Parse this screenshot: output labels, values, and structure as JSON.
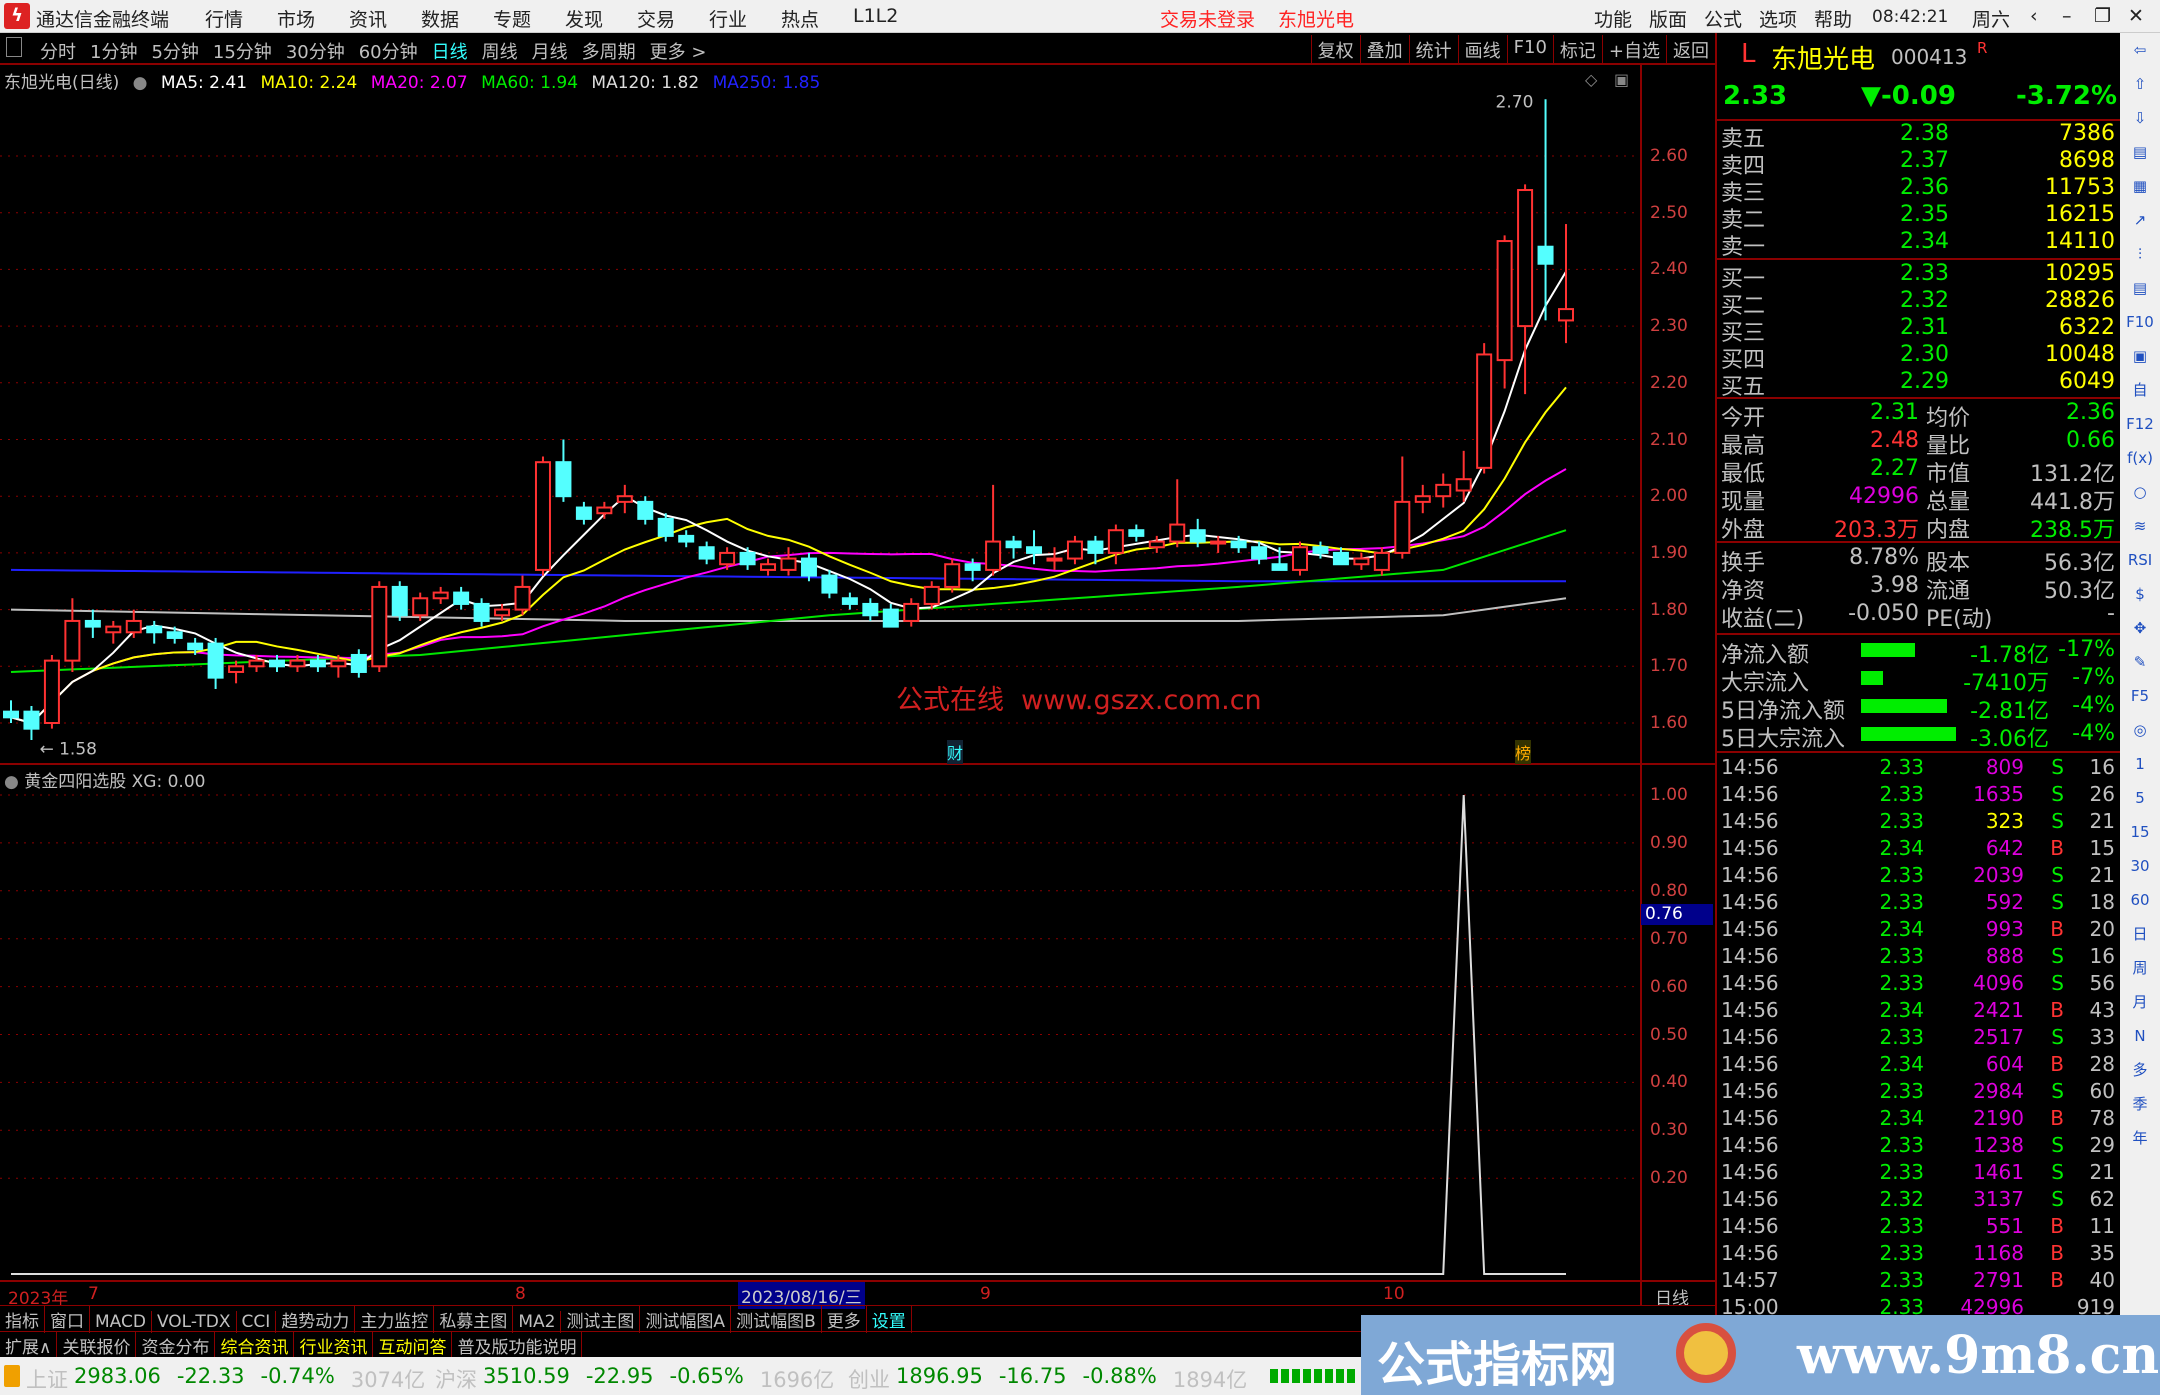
{
  "titlebar": {
    "app": "通达信金融终端",
    "menus": [
      "行情",
      "市场",
      "资讯",
      "数据",
      "专题",
      "发现",
      "交易",
      "行业",
      "热点",
      "L1L2"
    ],
    "login": "交易未登录",
    "stock": "东旭光电",
    "right_menus": [
      "功能",
      "版面",
      "公式",
      "选项",
      "帮助"
    ],
    "time": "08:42:21",
    "weekday": "周六"
  },
  "periods": [
    "分时",
    "1分钟",
    "5分钟",
    "15分钟",
    "30分钟",
    "60分钟",
    "日线",
    "周线",
    "月线",
    "多周期",
    "更多 >"
  ],
  "selected_period": "日线",
  "chart_toolbar": [
    "复权",
    "叠加",
    "统计",
    "画线",
    "F10",
    "标记",
    "+自选",
    "返回"
  ],
  "ma": {
    "title": "东旭光电(日线)",
    "ma5": "MA5: 2.41",
    "ma10": "MA10: 2.24",
    "ma20": "MA20: 2.07",
    "ma60": "MA60: 1.94",
    "ma120": "MA120: 1.82",
    "ma250": "MA250: 1.85"
  },
  "colors": {
    "up": "#ff3232",
    "down": "#54ffff",
    "ma5": "#ffffff",
    "ma10": "#ffff00",
    "ma20": "#ff00ff",
    "ma60": "#00e600",
    "ma120": "#c0c0c0",
    "ma250": "#2020ff",
    "grid": "#8b0000"
  },
  "price_axis": [
    "2.60",
    "2.50",
    "2.40",
    "2.30",
    "2.20",
    "2.10",
    "2.00",
    "1.90",
    "1.80",
    "1.70",
    "1.60"
  ],
  "annotations": {
    "high": "2.70",
    "low": "1.58",
    "watermark": "公式在线  www.gszx.com.cn",
    "cai": "财",
    "bang": "榜"
  },
  "chart_data": {
    "type": "candlestick",
    "ylim": [
      1.55,
      2.72
    ],
    "candles": [
      [
        1.62,
        1.64,
        1.6,
        1.61
      ],
      [
        1.62,
        1.63,
        1.57,
        1.59
      ],
      [
        1.6,
        1.72,
        1.59,
        1.71
      ],
      [
        1.71,
        1.82,
        1.69,
        1.78
      ],
      [
        1.78,
        1.8,
        1.75,
        1.77
      ],
      [
        1.76,
        1.78,
        1.74,
        1.77
      ],
      [
        1.76,
        1.8,
        1.75,
        1.78
      ],
      [
        1.77,
        1.78,
        1.74,
        1.76
      ],
      [
        1.76,
        1.77,
        1.74,
        1.75
      ],
      [
        1.74,
        1.75,
        1.72,
        1.73
      ],
      [
        1.74,
        1.75,
        1.66,
        1.68
      ],
      [
        1.69,
        1.71,
        1.67,
        1.7
      ],
      [
        1.7,
        1.72,
        1.69,
        1.71
      ],
      [
        1.71,
        1.72,
        1.69,
        1.7
      ],
      [
        1.7,
        1.72,
        1.69,
        1.71
      ],
      [
        1.71,
        1.72,
        1.69,
        1.7
      ],
      [
        1.7,
        1.72,
        1.68,
        1.71
      ],
      [
        1.72,
        1.73,
        1.68,
        1.69
      ],
      [
        1.7,
        1.85,
        1.69,
        1.84
      ],
      [
        1.84,
        1.85,
        1.78,
        1.79
      ],
      [
        1.79,
        1.83,
        1.78,
        1.82
      ],
      [
        1.82,
        1.84,
        1.81,
        1.83
      ],
      [
        1.83,
        1.84,
        1.8,
        1.81
      ],
      [
        1.81,
        1.82,
        1.77,
        1.78
      ],
      [
        1.79,
        1.81,
        1.78,
        1.8
      ],
      [
        1.8,
        1.86,
        1.79,
        1.84
      ],
      [
        1.87,
        2.07,
        1.86,
        2.06
      ],
      [
        2.06,
        2.1,
        1.99,
        2.0
      ],
      [
        1.98,
        1.99,
        1.95,
        1.96
      ],
      [
        1.97,
        1.99,
        1.96,
        1.98
      ],
      [
        1.99,
        2.02,
        1.97,
        2.0
      ],
      [
        1.99,
        2.0,
        1.95,
        1.96
      ],
      [
        1.96,
        1.97,
        1.92,
        1.93
      ],
      [
        1.93,
        1.94,
        1.91,
        1.92
      ],
      [
        1.91,
        1.92,
        1.88,
        1.89
      ],
      [
        1.88,
        1.91,
        1.87,
        1.9
      ],
      [
        1.9,
        1.91,
        1.87,
        1.88
      ],
      [
        1.87,
        1.89,
        1.86,
        1.88
      ],
      [
        1.87,
        1.91,
        1.86,
        1.89
      ],
      [
        1.89,
        1.9,
        1.85,
        1.86
      ],
      [
        1.86,
        1.87,
        1.82,
        1.83
      ],
      [
        1.82,
        1.83,
        1.8,
        1.81
      ],
      [
        1.81,
        1.82,
        1.78,
        1.79
      ],
      [
        1.8,
        1.81,
        1.77,
        1.77
      ],
      [
        1.78,
        1.82,
        1.77,
        1.81
      ],
      [
        1.81,
        1.85,
        1.8,
        1.84
      ],
      [
        1.84,
        1.89,
        1.83,
        1.88
      ],
      [
        1.88,
        1.89,
        1.85,
        1.87
      ],
      [
        1.87,
        2.02,
        1.86,
        1.92
      ],
      [
        1.92,
        1.93,
        1.89,
        1.91
      ],
      [
        1.91,
        1.94,
        1.88,
        1.9
      ],
      [
        1.89,
        1.91,
        1.87,
        1.89
      ],
      [
        1.89,
        1.93,
        1.88,
        1.92
      ],
      [
        1.92,
        1.93,
        1.88,
        1.9
      ],
      [
        1.9,
        1.95,
        1.88,
        1.94
      ],
      [
        1.94,
        1.95,
        1.92,
        1.93
      ],
      [
        1.91,
        1.93,
        1.9,
        1.92
      ],
      [
        1.92,
        2.03,
        1.91,
        1.95
      ],
      [
        1.94,
        1.96,
        1.91,
        1.92
      ],
      [
        1.92,
        1.93,
        1.9,
        1.92
      ],
      [
        1.92,
        1.93,
        1.9,
        1.91
      ],
      [
        1.91,
        1.92,
        1.88,
        1.89
      ],
      [
        1.88,
        1.91,
        1.87,
        1.87
      ],
      [
        1.87,
        1.92,
        1.86,
        1.91
      ],
      [
        1.91,
        1.92,
        1.89,
        1.9
      ],
      [
        1.9,
        1.91,
        1.88,
        1.88
      ],
      [
        1.88,
        1.9,
        1.87,
        1.89
      ],
      [
        1.87,
        1.91,
        1.86,
        1.9
      ],
      [
        1.9,
        2.07,
        1.89,
        1.99
      ],
      [
        1.99,
        2.02,
        1.97,
        2.0
      ],
      [
        2.0,
        2.04,
        1.98,
        2.02
      ],
      [
        2.01,
        2.08,
        1.99,
        2.03
      ],
      [
        2.05,
        2.27,
        2.04,
        2.25
      ],
      [
        2.24,
        2.46,
        2.19,
        2.45
      ],
      [
        2.3,
        2.55,
        2.18,
        2.54
      ],
      [
        2.44,
        2.7,
        2.31,
        2.41
      ],
      [
        2.31,
        2.48,
        2.27,
        2.33
      ]
    ],
    "ma60": [
      [
        0,
        1.69
      ],
      [
        20,
        1.72
      ],
      [
        40,
        1.79
      ],
      [
        60,
        1.84
      ],
      [
        70,
        1.87
      ],
      [
        76,
        1.94
      ]
    ],
    "ma120": [
      [
        0,
        1.8
      ],
      [
        30,
        1.78
      ],
      [
        60,
        1.78
      ],
      [
        70,
        1.79
      ],
      [
        76,
        1.82
      ]
    ],
    "ma250": [
      [
        0,
        1.87
      ],
      [
        30,
        1.86
      ],
      [
        60,
        1.85
      ],
      [
        76,
        1.85
      ]
    ]
  },
  "indicator": {
    "title": "黄金四阳选股",
    "value": "XG: 0.00",
    "axis": [
      "1.00",
      "0.90",
      "0.80",
      "0.70",
      "0.60",
      "0.50",
      "0.40",
      "0.30",
      "0.20"
    ],
    "cursor": "0.76",
    "signal_index": 71
  },
  "date_axis": {
    "year": "2023年",
    "m7": "7",
    "m8": "8",
    "cursor": "2023/08/16/三",
    "m9": "9",
    "m10": "10",
    "period": "日线"
  },
  "tabs1": [
    "指标",
    "窗口",
    "MACD",
    "VOL-TDX",
    "CCI",
    "趋势动力",
    "主力监控",
    "私募主图",
    "MA2",
    "测试主图",
    "测试幅图A",
    "测试幅图B",
    "更多",
    "设置"
  ],
  "tabs2": [
    "扩展∧",
    "关联报价",
    "资金分布",
    "综合资讯",
    "行业资讯",
    "互动问答",
    "普及版功能说明"
  ],
  "quote": {
    "market": "L",
    "name": "东旭光电",
    "code": "000413",
    "flag": "R",
    "price": "2.33",
    "change": "▼-0.09",
    "pct": "-3.72%",
    "asks": [
      [
        "卖五",
        "2.38",
        "7386"
      ],
      [
        "卖四",
        "2.37",
        "8698"
      ],
      [
        "卖三",
        "2.36",
        "11753"
      ],
      [
        "卖二",
        "2.35",
        "16215"
      ],
      [
        "卖一",
        "2.34",
        "14110"
      ]
    ],
    "bids": [
      [
        "买一",
        "2.33",
        "10295"
      ],
      [
        "买二",
        "2.32",
        "28826"
      ],
      [
        "买三",
        "2.31",
        "6322"
      ],
      [
        "买四",
        "2.30",
        "10048"
      ],
      [
        "买五",
        "2.29",
        "6049"
      ]
    ],
    "stats": [
      [
        "今开",
        "2.31",
        "均价",
        "2.36"
      ],
      [
        "最高",
        "2.48",
        "量比",
        "0.66"
      ],
      [
        "最低",
        "2.27",
        "市值",
        "131.2亿"
      ],
      [
        "现量",
        "42996",
        "总量",
        "441.8万"
      ],
      [
        "外盘",
        "203.3万",
        "内盘",
        "238.5万"
      ]
    ],
    "stats2": [
      [
        "换手",
        "8.78%",
        "股本",
        "56.3亿"
      ],
      [
        "净资",
        "3.98",
        "流通",
        "50.3亿"
      ],
      [
        "收益(二)",
        "-0.050",
        "PE(动)",
        "-"
      ]
    ],
    "flows": [
      [
        "净流入额",
        "-1.78亿",
        "-17%",
        0.45
      ],
      [
        "大宗流入",
        "-7410万",
        "-7%",
        0.18
      ],
      [
        "5日净流入额",
        "-2.81亿",
        "-4%",
        0.72
      ],
      [
        "5日大宗流入",
        "-3.06亿",
        "-4%",
        0.79
      ]
    ],
    "ticks": [
      [
        "14:56",
        "2.33",
        "809",
        "S",
        "16"
      ],
      [
        "14:56",
        "2.33",
        "1635",
        "S",
        "26"
      ],
      [
        "14:56",
        "2.33",
        "323",
        "S",
        "21"
      ],
      [
        "14:56",
        "2.34",
        "642",
        "B",
        "15"
      ],
      [
        "14:56",
        "2.33",
        "2039",
        "S",
        "21"
      ],
      [
        "14:56",
        "2.33",
        "592",
        "S",
        "18"
      ],
      [
        "14:56",
        "2.34",
        "993",
        "B",
        "20"
      ],
      [
        "14:56",
        "2.33",
        "888",
        "S",
        "16"
      ],
      [
        "14:56",
        "2.33",
        "4096",
        "S",
        "56"
      ],
      [
        "14:56",
        "2.34",
        "2421",
        "B",
        "43"
      ],
      [
        "14:56",
        "2.33",
        "2517",
        "S",
        "33"
      ],
      [
        "14:56",
        "2.34",
        "604",
        "B",
        "28"
      ],
      [
        "14:56",
        "2.33",
        "2984",
        "S",
        "60"
      ],
      [
        "14:56",
        "2.34",
        "2190",
        "B",
        "78"
      ],
      [
        "14:56",
        "2.33",
        "1238",
        "S",
        "29"
      ],
      [
        "14:56",
        "2.33",
        "1461",
        "S",
        "21"
      ],
      [
        "14:56",
        "2.32",
        "3137",
        "S",
        "62"
      ],
      [
        "14:56",
        "2.33",
        "551",
        "B",
        "11"
      ],
      [
        "14:56",
        "2.33",
        "1168",
        "B",
        "35"
      ],
      [
        "14:57",
        "2.33",
        "2791",
        "B",
        "40"
      ],
      [
        "15:00",
        "2.33",
        "42996",
        "",
        "919"
      ]
    ]
  },
  "side_icons": [
    "⇦",
    "⇧",
    "⇩",
    "▤",
    "▦",
    "↗",
    "⫶",
    "▤",
    "F10",
    "▣",
    "自",
    "F12",
    "f(x)",
    "○",
    "≋",
    "RSI",
    "$",
    "✥",
    "✎",
    "F5",
    "◎",
    "1",
    "5",
    "15",
    "30",
    "60",
    "日",
    "周",
    "月",
    "N",
    "多",
    "季",
    "年"
  ],
  "status": {
    "sh": "上证",
    "sh_v": "2983.06",
    "sh_c": "-22.33",
    "sh_p": "-0.74%",
    "sh_a": "3074亿",
    "hs": "沪深",
    "hs_v": "3510.59",
    "hs_c": "-22.95",
    "hs_p": "-0.65%",
    "hs_a": "1696亿",
    "cy": "创业",
    "cy_v": "1896.95",
    "cy_c": "-16.75",
    "cy_p": "-0.88%",
    "cy_a": "1894亿"
  },
  "banner": {
    "text": "公式指标网",
    "url": "www.9m8.cn"
  }
}
